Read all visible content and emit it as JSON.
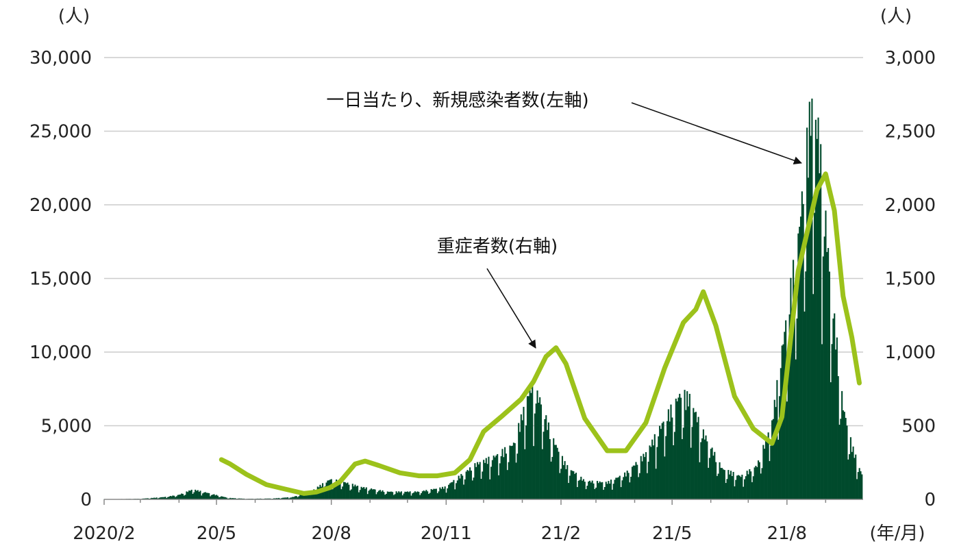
{
  "chart_data": {
    "type": "bar",
    "title": "",
    "left_axis": {
      "unit_label": "(人)",
      "ylim": [
        0,
        30000
      ],
      "ticks": [
        0,
        5000,
        10000,
        15000,
        20000,
        25000,
        30000
      ],
      "tick_labels": [
        "0",
        "5,000",
        "10,000",
        "15,000",
        "20,000",
        "25,000",
        "30,000"
      ]
    },
    "right_axis": {
      "unit_label": "(人)",
      "ylim": [
        0,
        3000
      ],
      "ticks": [
        0,
        500,
        1000,
        1500,
        2000,
        2500,
        3000
      ],
      "tick_labels": [
        "0",
        "500",
        "1,000",
        "1,500",
        "2,000",
        "2,500",
        "3,000"
      ]
    },
    "x_axis": {
      "unit_label": "(年/月)",
      "range": [
        "2020-02",
        "2021-09"
      ],
      "ticks": [
        "2020/2",
        "20/5",
        "20/8",
        "20/11",
        "21/2",
        "21/5",
        "21/8"
      ]
    },
    "grid": true,
    "colors": {
      "cases": "#004a2c",
      "severe": "#9cc21b",
      "grid": "#cccccc"
    },
    "series": [
      {
        "name": "一日当たり、新規感染者数(左軸)",
        "type": "bar",
        "axis": "left",
        "points": [
          [
            "2020-02-01",
            10
          ],
          [
            "2020-03-01",
            40
          ],
          [
            "2020-03-20",
            150
          ],
          [
            "2020-04-01",
            300
          ],
          [
            "2020-04-12",
            650
          ],
          [
            "2020-04-25",
            400
          ],
          [
            "2020-05-10",
            100
          ],
          [
            "2020-05-25",
            40
          ],
          [
            "2020-06-15",
            60
          ],
          [
            "2020-07-01",
            150
          ],
          [
            "2020-07-15",
            500
          ],
          [
            "2020-07-31",
            1300
          ],
          [
            "2020-08-10",
            1150
          ],
          [
            "2020-08-25",
            800
          ],
          [
            "2020-09-15",
            500
          ],
          [
            "2020-10-10",
            500
          ],
          [
            "2020-10-31",
            800
          ],
          [
            "2020-11-10",
            1400
          ],
          [
            "2020-11-25",
            2300
          ],
          [
            "2020-12-10",
            2800
          ],
          [
            "2020-12-25",
            3600
          ],
          [
            "2021-01-08",
            7500
          ],
          [
            "2021-01-15",
            6500
          ],
          [
            "2021-01-25",
            4000
          ],
          [
            "2021-02-05",
            2200
          ],
          [
            "2021-02-20",
            1200
          ],
          [
            "2021-03-10",
            1100
          ],
          [
            "2021-03-25",
            1700
          ],
          [
            "2021-04-10",
            3000
          ],
          [
            "2021-04-25",
            5200
          ],
          [
            "2021-05-08",
            6900
          ],
          [
            "2021-05-15",
            6600
          ],
          [
            "2021-05-25",
            4500
          ],
          [
            "2021-06-10",
            2000
          ],
          [
            "2021-06-25",
            1500
          ],
          [
            "2021-07-08",
            2200
          ],
          [
            "2021-07-20",
            5000
          ],
          [
            "2021-07-31",
            11500
          ],
          [
            "2021-08-10",
            17000
          ],
          [
            "2021-08-20",
            25500
          ],
          [
            "2021-08-26",
            24000
          ],
          [
            "2021-09-05",
            14000
          ],
          [
            "2021-09-15",
            6000
          ],
          [
            "2021-09-22",
            3500
          ],
          [
            "2021-09-30",
            1600
          ]
        ]
      },
      {
        "name": "重症者数(右軸)",
        "type": "line",
        "axis": "right",
        "points": [
          [
            "2020-05-05",
            270
          ],
          [
            "2020-05-12",
            240
          ],
          [
            "2020-05-25",
            170
          ],
          [
            "2020-06-10",
            100
          ],
          [
            "2020-06-25",
            70
          ],
          [
            "2020-07-10",
            40
          ],
          [
            "2020-07-20",
            50
          ],
          [
            "2020-07-31",
            80
          ],
          [
            "2020-08-08",
            120
          ],
          [
            "2020-08-20",
            240
          ],
          [
            "2020-08-28",
            260
          ],
          [
            "2020-09-08",
            230
          ],
          [
            "2020-09-25",
            180
          ],
          [
            "2020-10-10",
            160
          ],
          [
            "2020-10-25",
            160
          ],
          [
            "2020-11-08",
            180
          ],
          [
            "2020-11-20",
            270
          ],
          [
            "2020-12-01",
            460
          ],
          [
            "2020-12-15",
            560
          ],
          [
            "2020-12-31",
            680
          ],
          [
            "2021-01-10",
            800
          ],
          [
            "2021-01-20",
            970
          ],
          [
            "2021-01-28",
            1030
          ],
          [
            "2021-02-05",
            920
          ],
          [
            "2021-02-20",
            550
          ],
          [
            "2021-03-10",
            330
          ],
          [
            "2021-03-25",
            330
          ],
          [
            "2021-04-10",
            520
          ],
          [
            "2021-04-25",
            890
          ],
          [
            "2021-05-10",
            1200
          ],
          [
            "2021-05-20",
            1290
          ],
          [
            "2021-05-26",
            1410
          ],
          [
            "2021-06-05",
            1180
          ],
          [
            "2021-06-20",
            700
          ],
          [
            "2021-07-05",
            480
          ],
          [
            "2021-07-20",
            380
          ],
          [
            "2021-07-28",
            560
          ],
          [
            "2021-08-10",
            1550
          ],
          [
            "2021-08-25",
            2100
          ],
          [
            "2021-09-01",
            2210
          ],
          [
            "2021-09-08",
            1960
          ],
          [
            "2021-09-15",
            1380
          ],
          [
            "2021-09-22",
            1100
          ],
          [
            "2021-09-28",
            790
          ]
        ]
      }
    ],
    "annotations": [
      {
        "text": "一日当たり、新規感染者数(左軸)",
        "target_series": 0
      },
      {
        "text": "重症者数(右軸)",
        "target_series": 1
      }
    ]
  }
}
